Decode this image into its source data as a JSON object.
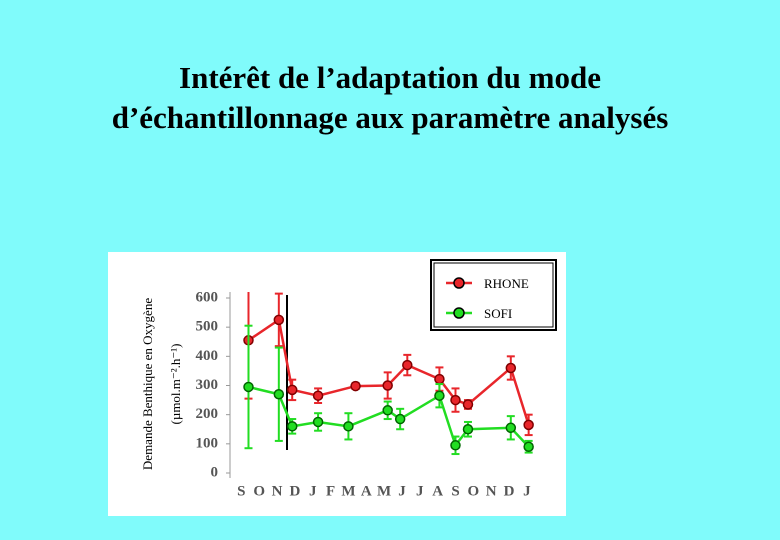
{
  "chart_data": {
    "type": "line",
    "title": [
      "Intérêt de l’adaptation du mode",
      "d’échantillonnage aux paramètre analysés"
    ],
    "y_label": "Demande Benthique en Oxygène",
    "y_unit": "(µmol.m⁻².h⁻¹)",
    "xlim": [
      -0.3,
      16.4
    ],
    "xticks": [
      {
        "value": 0,
        "label": "S"
      },
      {
        "value": 1,
        "label": "O"
      },
      {
        "value": 2,
        "label": "N"
      },
      {
        "value": 3,
        "label": "D"
      },
      {
        "value": 4,
        "label": "J"
      },
      {
        "value": 5,
        "label": "F"
      },
      {
        "value": 6,
        "label": "M"
      },
      {
        "value": 7,
        "label": "A"
      },
      {
        "value": 8,
        "label": "M"
      },
      {
        "value": 9,
        "label": "J"
      },
      {
        "value": 10,
        "label": "J"
      },
      {
        "value": 11,
        "label": "A"
      },
      {
        "value": 12,
        "label": "S"
      },
      {
        "value": 13,
        "label": "O"
      },
      {
        "value": 14,
        "label": "N"
      },
      {
        "value": 15,
        "label": "D"
      },
      {
        "value": 16,
        "label": "J"
      }
    ],
    "ylim": [
      0,
      600
    ],
    "yticks": [
      0,
      100,
      200,
      300,
      400,
      500,
      600
    ],
    "series": [
      {
        "name": "RHONE",
        "color": "#e8262b",
        "x": [
          0.4,
          2.1,
          2.85,
          4.3,
          6.4,
          8.2,
          9.3,
          11.1,
          12.0,
          12.7,
          15.1,
          16.1
        ],
        "values": [
          455,
          525,
          285,
          265,
          298,
          300,
          370,
          322,
          250,
          235,
          360,
          165
        ],
        "errors": [
          200,
          90,
          35,
          25,
          10,
          45,
          35,
          40,
          40,
          15,
          40,
          35
        ]
      },
      {
        "name": "SOFI",
        "color": "#22dd22",
        "x": [
          0.4,
          2.1,
          2.85,
          4.3,
          6.0,
          8.2,
          8.9,
          11.1,
          12.0,
          12.7,
          15.1,
          16.1
        ],
        "values": [
          295,
          270,
          160,
          175,
          160,
          215,
          185,
          265,
          95,
          150,
          155,
          90
        ],
        "errors": [
          210,
          160,
          25,
          30,
          45,
          30,
          35,
          40,
          30,
          25,
          40,
          20
        ]
      }
    ]
  }
}
